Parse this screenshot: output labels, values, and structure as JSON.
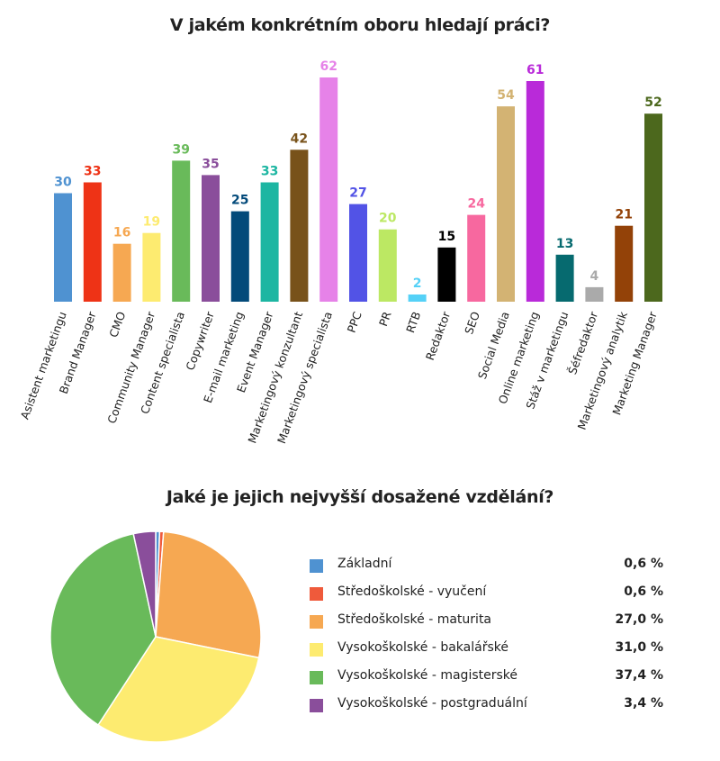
{
  "chart_data": [
    {
      "type": "bar",
      "title": "V jakém konkrétním oboru hledají práci?",
      "xlabel": "",
      "ylabel": "",
      "ylim": [
        0,
        62
      ],
      "grid": false,
      "categories": [
        "Asistent marketingu",
        "Brand Manager",
        "CMO",
        "Community Manager",
        "Content specialista",
        "Copywriter",
        "E-mail marketing",
        "Event Manager",
        "Marketingový konzultant",
        "Marketingový specialista",
        "PPC",
        "PR",
        "RTB",
        "Redaktor",
        "SEO",
        "Social Media",
        "Online marketing",
        "Stáž v marketingu",
        "Šéfredaktor",
        "Marketingový analytik",
        "Marketing Manager"
      ],
      "values": [
        30,
        33,
        16,
        19,
        39,
        35,
        25,
        33,
        42,
        62,
        27,
        20,
        2,
        15,
        24,
        54,
        61,
        13,
        4,
        21,
        52
      ],
      "colors": [
        "#4f92d1",
        "#ee3316",
        "#f6a852",
        "#fdeb70",
        "#69ba5a",
        "#8a4e9b",
        "#034a7a",
        "#1db6a2",
        "#78521a",
        "#e682e8",
        "#5253e6",
        "#bce863",
        "#55d1f7",
        "#000000",
        "#f7689f",
        "#d3b373",
        "#b92ad9",
        "#066a6f",
        "#aaaaaa",
        "#934208",
        "#4c681d"
      ]
    },
    {
      "type": "pie",
      "title": "Jaké je jejich nejvyšší dosažené vzdělání?",
      "legend_position": "right",
      "labels": [
        "Základní",
        "Středoškolské - vyučení",
        "Středoškolské - maturita",
        "Vysokoškolské - bakalářské",
        "Vysokoškolské - magisterské",
        "Vysokoškolské - postgraduální"
      ],
      "values": [
        0.6,
        0.6,
        27.0,
        31.0,
        37.4,
        3.4
      ],
      "value_labels": [
        "0,6 %",
        "0,6 %",
        "27,0 %",
        "31,0 %",
        "37,4 %",
        "3,4 %"
      ],
      "colors": [
        "#4f92d1",
        "#ef5a3b",
        "#f6a852",
        "#fdeb70",
        "#69ba5a",
        "#8a4e9b"
      ]
    }
  ]
}
